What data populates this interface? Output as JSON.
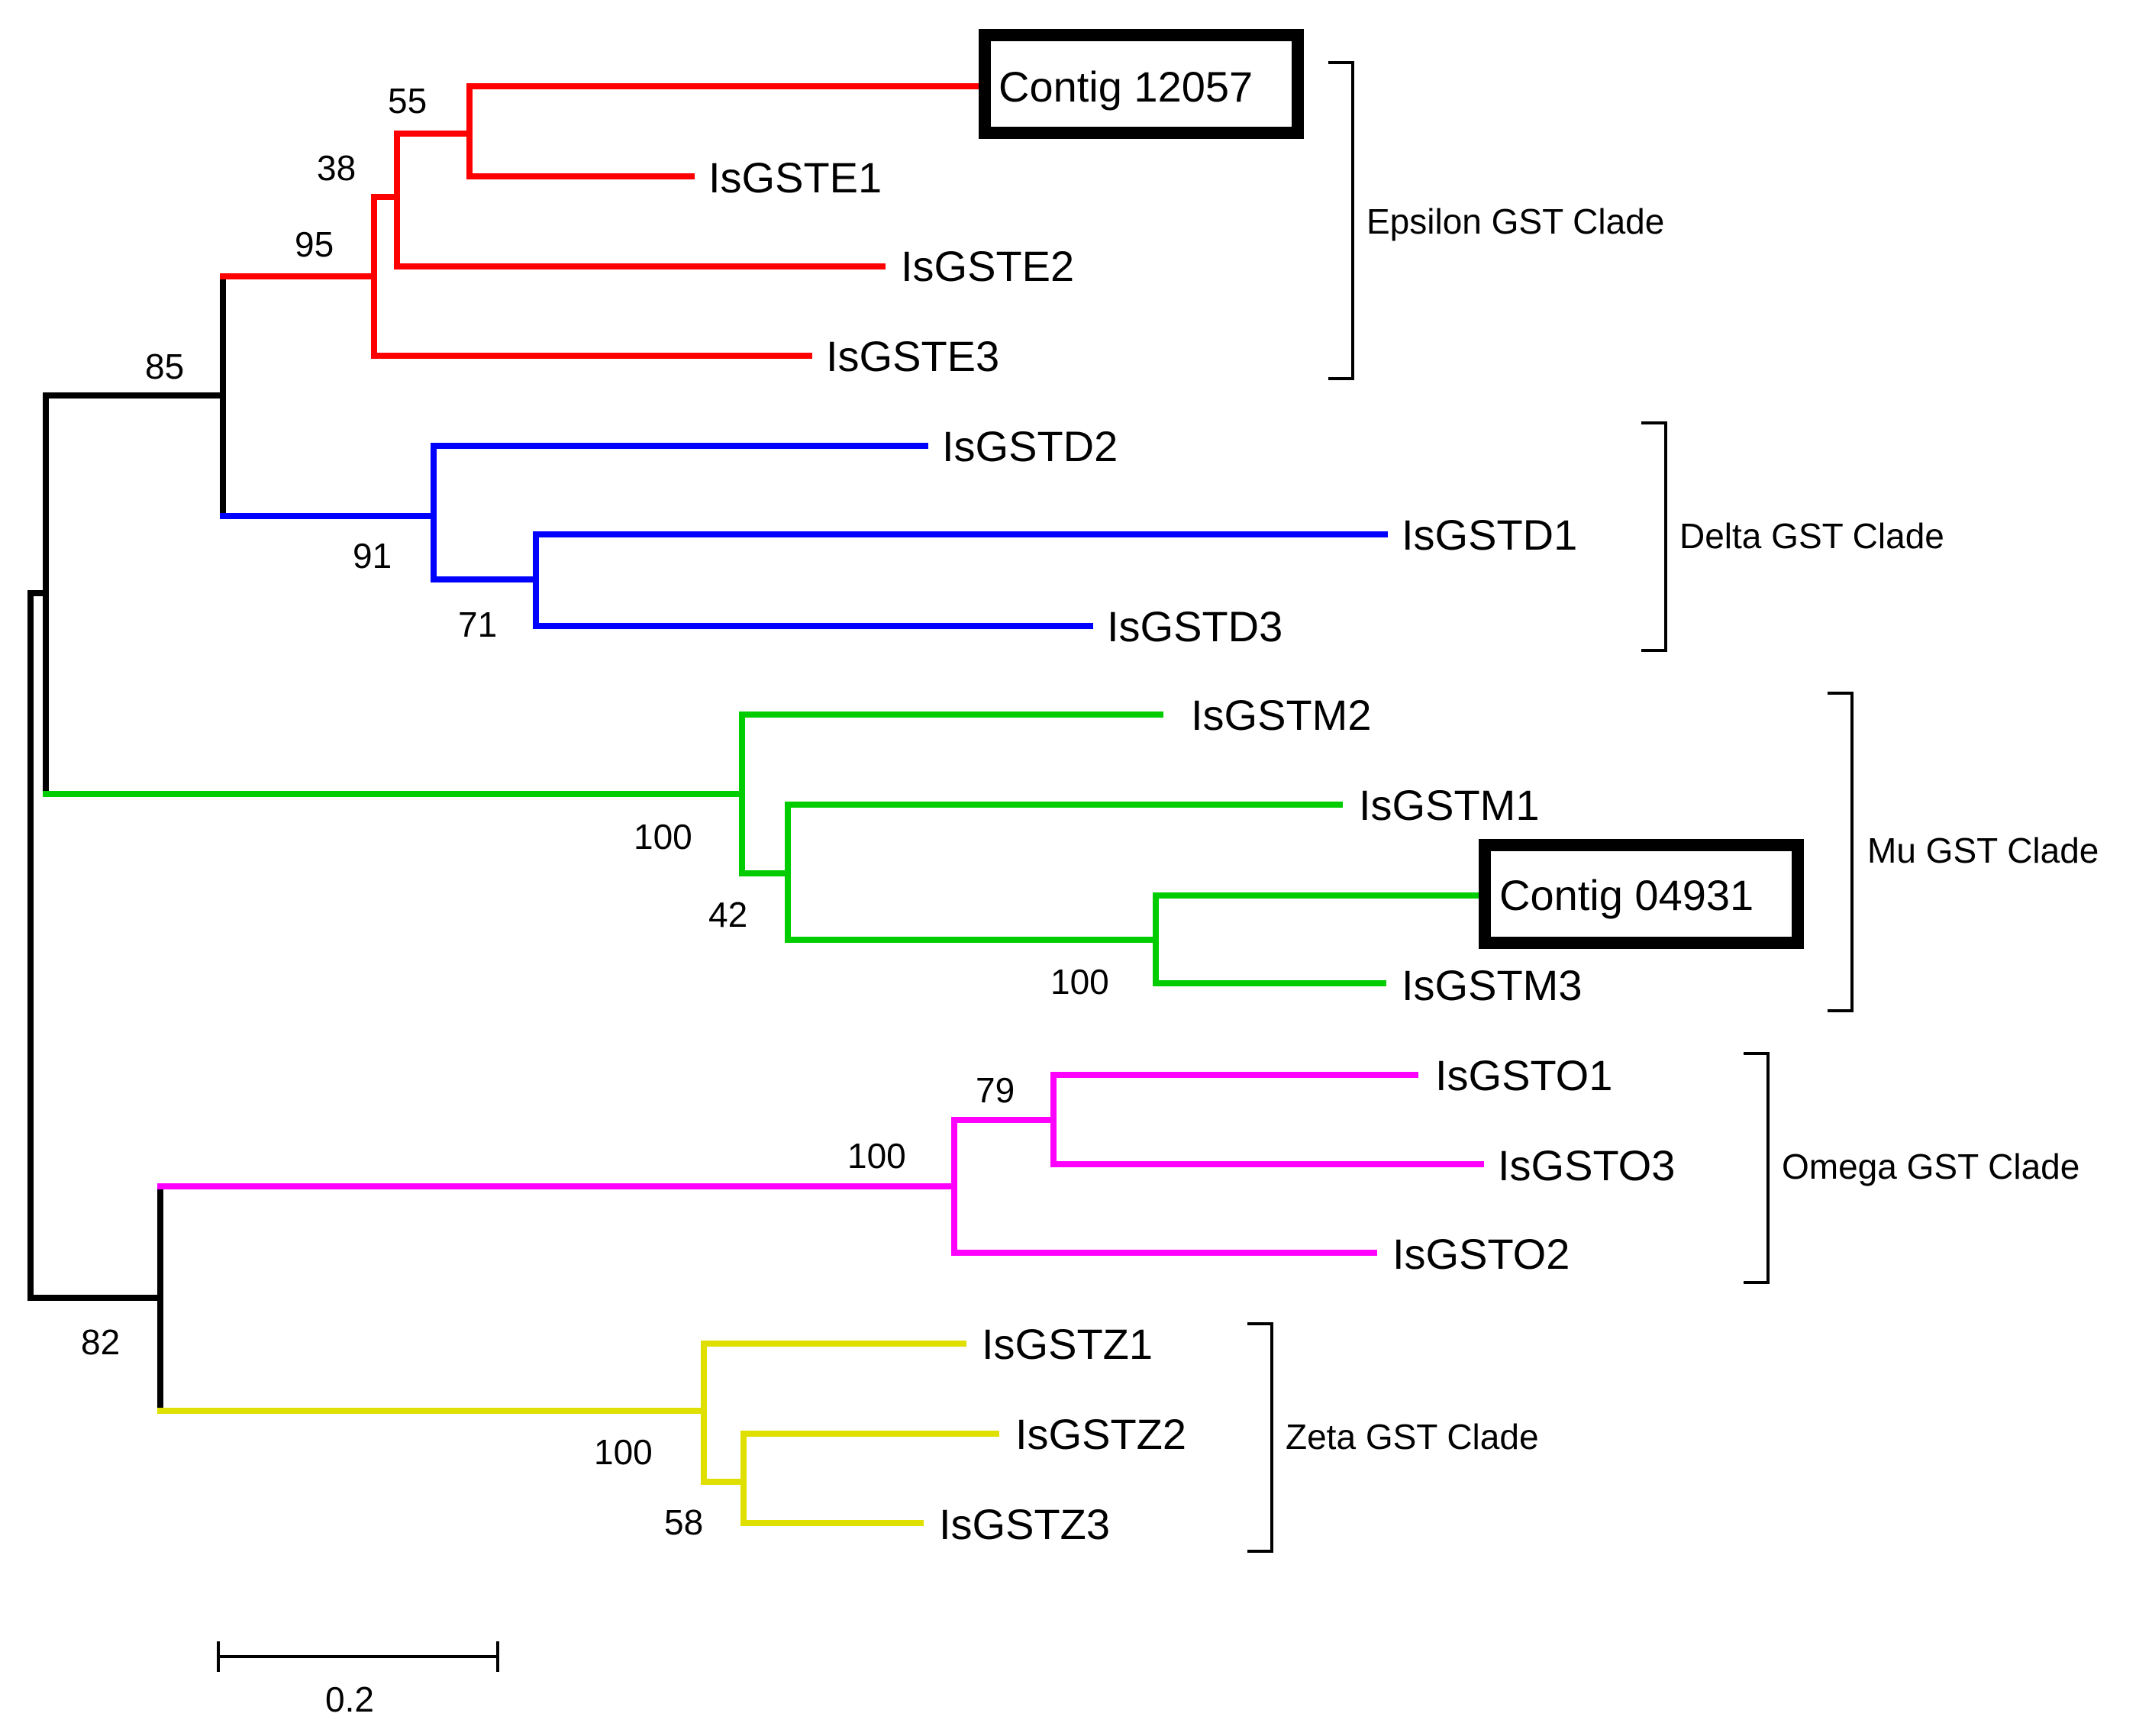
{
  "colors": {
    "root": "#000000",
    "epsilon": "#ff0000",
    "delta": "#0000ff",
    "mu": "#00cc00",
    "omega": "#ff00ff",
    "zeta": "#e0e000"
  },
  "leaves": {
    "contig12057": "Contig 12057",
    "isgste1": "IsGSTE1",
    "isgste2": "IsGSTE2",
    "isgste3": "IsGSTE3",
    "isgstd2": "IsGSTD2",
    "isgstd1": "IsGSTD1",
    "isgstd3": "IsGSTD3",
    "isgstm2": "IsGSTM2",
    "isgstm1": "IsGSTM1",
    "contig04931": "Contig 04931",
    "isgstm3": "IsGSTM3",
    "isgsto1": "IsGSTO1",
    "isgsto3": "IsGSTO3",
    "isgsto2": "IsGSTO2",
    "isgstz1": "IsGSTZ1",
    "isgstz2": "IsGSTZ2",
    "isgstz3": "IsGSTZ3"
  },
  "support": {
    "s55": "55",
    "s38": "38",
    "s95": "95",
    "s85": "85",
    "s91": "91",
    "s71": "71",
    "s100_mu": "100",
    "s42": "42",
    "s100_mu2": "100",
    "s79": "79",
    "s100_omega": "100",
    "s82": "82",
    "s100_zeta": "100",
    "s58": "58"
  },
  "clades": {
    "epsilon": "Epsilon GST Clade",
    "delta": "Delta GST Clade",
    "mu": "Mu GST Clade",
    "omega": "Omega GST Clade",
    "zeta": "Zeta GST Clade"
  },
  "scale": {
    "label": "0.2"
  }
}
